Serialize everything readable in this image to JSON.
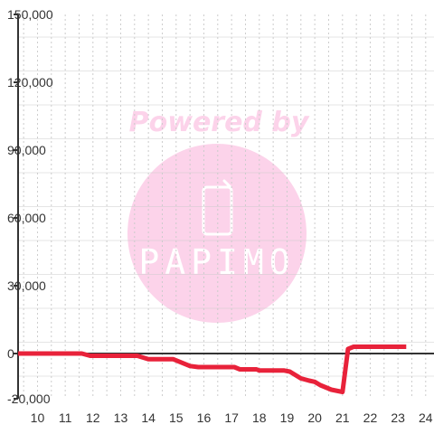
{
  "watermark": {
    "text": "Powered by",
    "brand": "PAPIMO",
    "color": "#fcd3ea"
  },
  "colors": {
    "series": "#e8223a",
    "axis": "#333333",
    "grid": "#cccccc"
  },
  "chart_data": {
    "type": "line",
    "title": "",
    "xlabel": "",
    "ylabel": "",
    "xlim": [
      9.3,
      24.3
    ],
    "ylim": [
      -20000,
      150000
    ],
    "x_ticks": [
      10,
      11,
      12,
      13,
      14,
      15,
      16,
      17,
      18,
      19,
      20,
      21,
      22,
      23,
      24
    ],
    "y_ticks": [
      -20000,
      0,
      30000,
      60000,
      90000,
      120000,
      150000
    ],
    "y_tick_labels": [
      "-20,000",
      "0",
      "30,000",
      "60,000",
      "90,000",
      "120,000",
      "150,000"
    ],
    "grid": true,
    "legend": "none",
    "series": [
      {
        "x": [
          9.3,
          11.0,
          11.6,
          11.9,
          12.4,
          13.0,
          13.6,
          14.0,
          14.9,
          15.5,
          15.8,
          16.2,
          17.1,
          17.3,
          17.9,
          18.0,
          18.9,
          19.1,
          19.5,
          19.8,
          20.0,
          20.2,
          20.6,
          21.0,
          21.2,
          21.4,
          23.3
        ],
        "y": [
          0,
          0,
          0,
          -1000,
          -1000,
          -1000,
          -1000,
          -2500,
          -2500,
          -5500,
          -6000,
          -6000,
          -6000,
          -7000,
          -7000,
          -7500,
          -7500,
          -8000,
          -11000,
          -12000,
          -12500,
          -14000,
          -16000,
          -17000,
          2000,
          3000,
          3000
        ]
      }
    ]
  }
}
